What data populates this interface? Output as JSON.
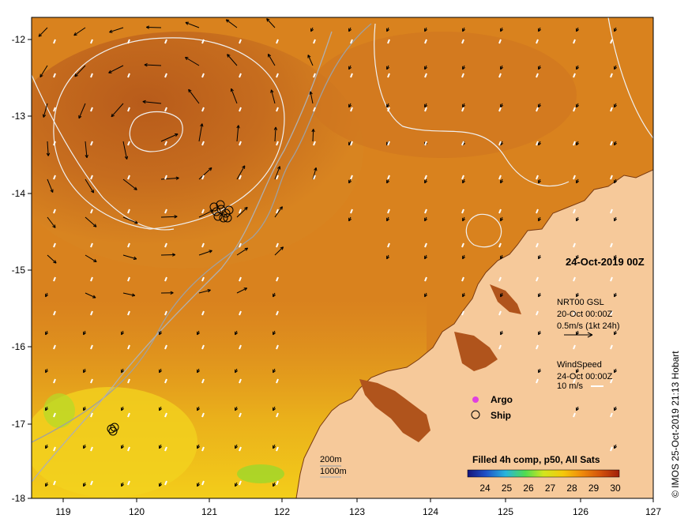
{
  "map": {
    "date_label": "24-Oct-2019 00Z",
    "credit": "© IMOS 25-Oct-2019 21:13 Hobart",
    "x_ticks": [
      "119",
      "120",
      "121",
      "122",
      "123",
      "124",
      "125",
      "126",
      "127"
    ],
    "y_ticks": [
      "-12",
      "-13",
      "-14",
      "-15",
      "-16",
      "-17",
      "-18"
    ],
    "current_legend": {
      "title": "NRT00 GSL",
      "time": "20-Oct 00:00Z",
      "scale": "0.5m/s (1kt 24h)"
    },
    "wind_legend": {
      "title": "WindSpeed",
      "time": "24-Oct 00:00Z",
      "scale": "10 m/s"
    },
    "markers": {
      "argo_label": "Argo",
      "ship_label": "Ship",
      "argo_color": "#e040e0"
    },
    "isobaths": [
      "200m",
      "1000m"
    ],
    "colorbar": {
      "title": "Filled 4h comp, p50, All Sats",
      "ticks": [
        "24",
        "25",
        "26",
        "27",
        "28",
        "29",
        "30"
      ],
      "colors": [
        "#14147a",
        "#1e50c8",
        "#28b4dc",
        "#50dc50",
        "#d2e61e",
        "#f5c80a",
        "#f08c0a",
        "#d2500a",
        "#a01e0a"
      ]
    },
    "colors": {
      "land": "#f6c99a",
      "sea_warm": "#d9821e",
      "sea_hot": "#b85d1a",
      "sea_cool": "#f3c81a"
    }
  }
}
